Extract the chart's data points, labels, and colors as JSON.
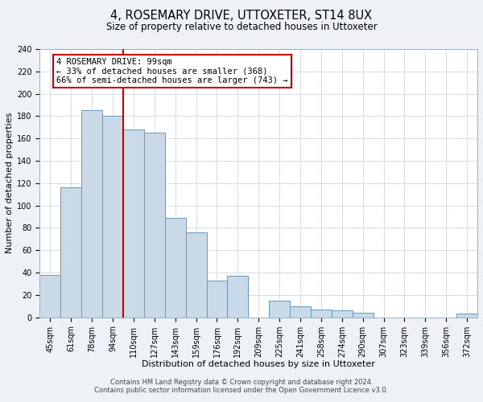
{
  "title": "4, ROSEMARY DRIVE, UTTOXETER, ST14 8UX",
  "subtitle": "Size of property relative to detached houses in Uttoxeter",
  "xlabel": "Distribution of detached houses by size in Uttoxeter",
  "ylabel": "Number of detached properties",
  "bar_labels": [
    "45sqm",
    "61sqm",
    "78sqm",
    "94sqm",
    "110sqm",
    "127sqm",
    "143sqm",
    "159sqm",
    "176sqm",
    "192sqm",
    "209sqm",
    "225sqm",
    "241sqm",
    "258sqm",
    "274sqm",
    "290sqm",
    "307sqm",
    "323sqm",
    "339sqm",
    "356sqm",
    "372sqm"
  ],
  "bar_values": [
    38,
    116,
    185,
    180,
    168,
    165,
    89,
    76,
    33,
    37,
    0,
    15,
    10,
    7,
    6,
    4,
    0,
    0,
    0,
    0,
    3
  ],
  "bar_color": "#c9d9e8",
  "bar_edge_color": "#6699bb",
  "vline_color": "#cc0000",
  "annotation_text": "4 ROSEMARY DRIVE: 99sqm\n← 33% of detached houses are smaller (368)\n66% of semi-detached houses are larger (743) →",
  "annotation_box_edge": "#cc0000",
  "ylim": [
    0,
    240
  ],
  "yticks": [
    0,
    20,
    40,
    60,
    80,
    100,
    120,
    140,
    160,
    180,
    200,
    220,
    240
  ],
  "footer1": "Contains HM Land Registry data © Crown copyright and database right 2024.",
  "footer2": "Contains public sector information licensed under the Open Government Licence v3.0.",
  "bg_color": "#eef2f6",
  "plot_bg_color": "#ffffff",
  "title_fontsize": 10.5,
  "subtitle_fontsize": 8.5,
  "axis_label_fontsize": 8,
  "tick_fontsize": 7,
  "annotation_fontsize": 7.5,
  "footer_fontsize": 6
}
